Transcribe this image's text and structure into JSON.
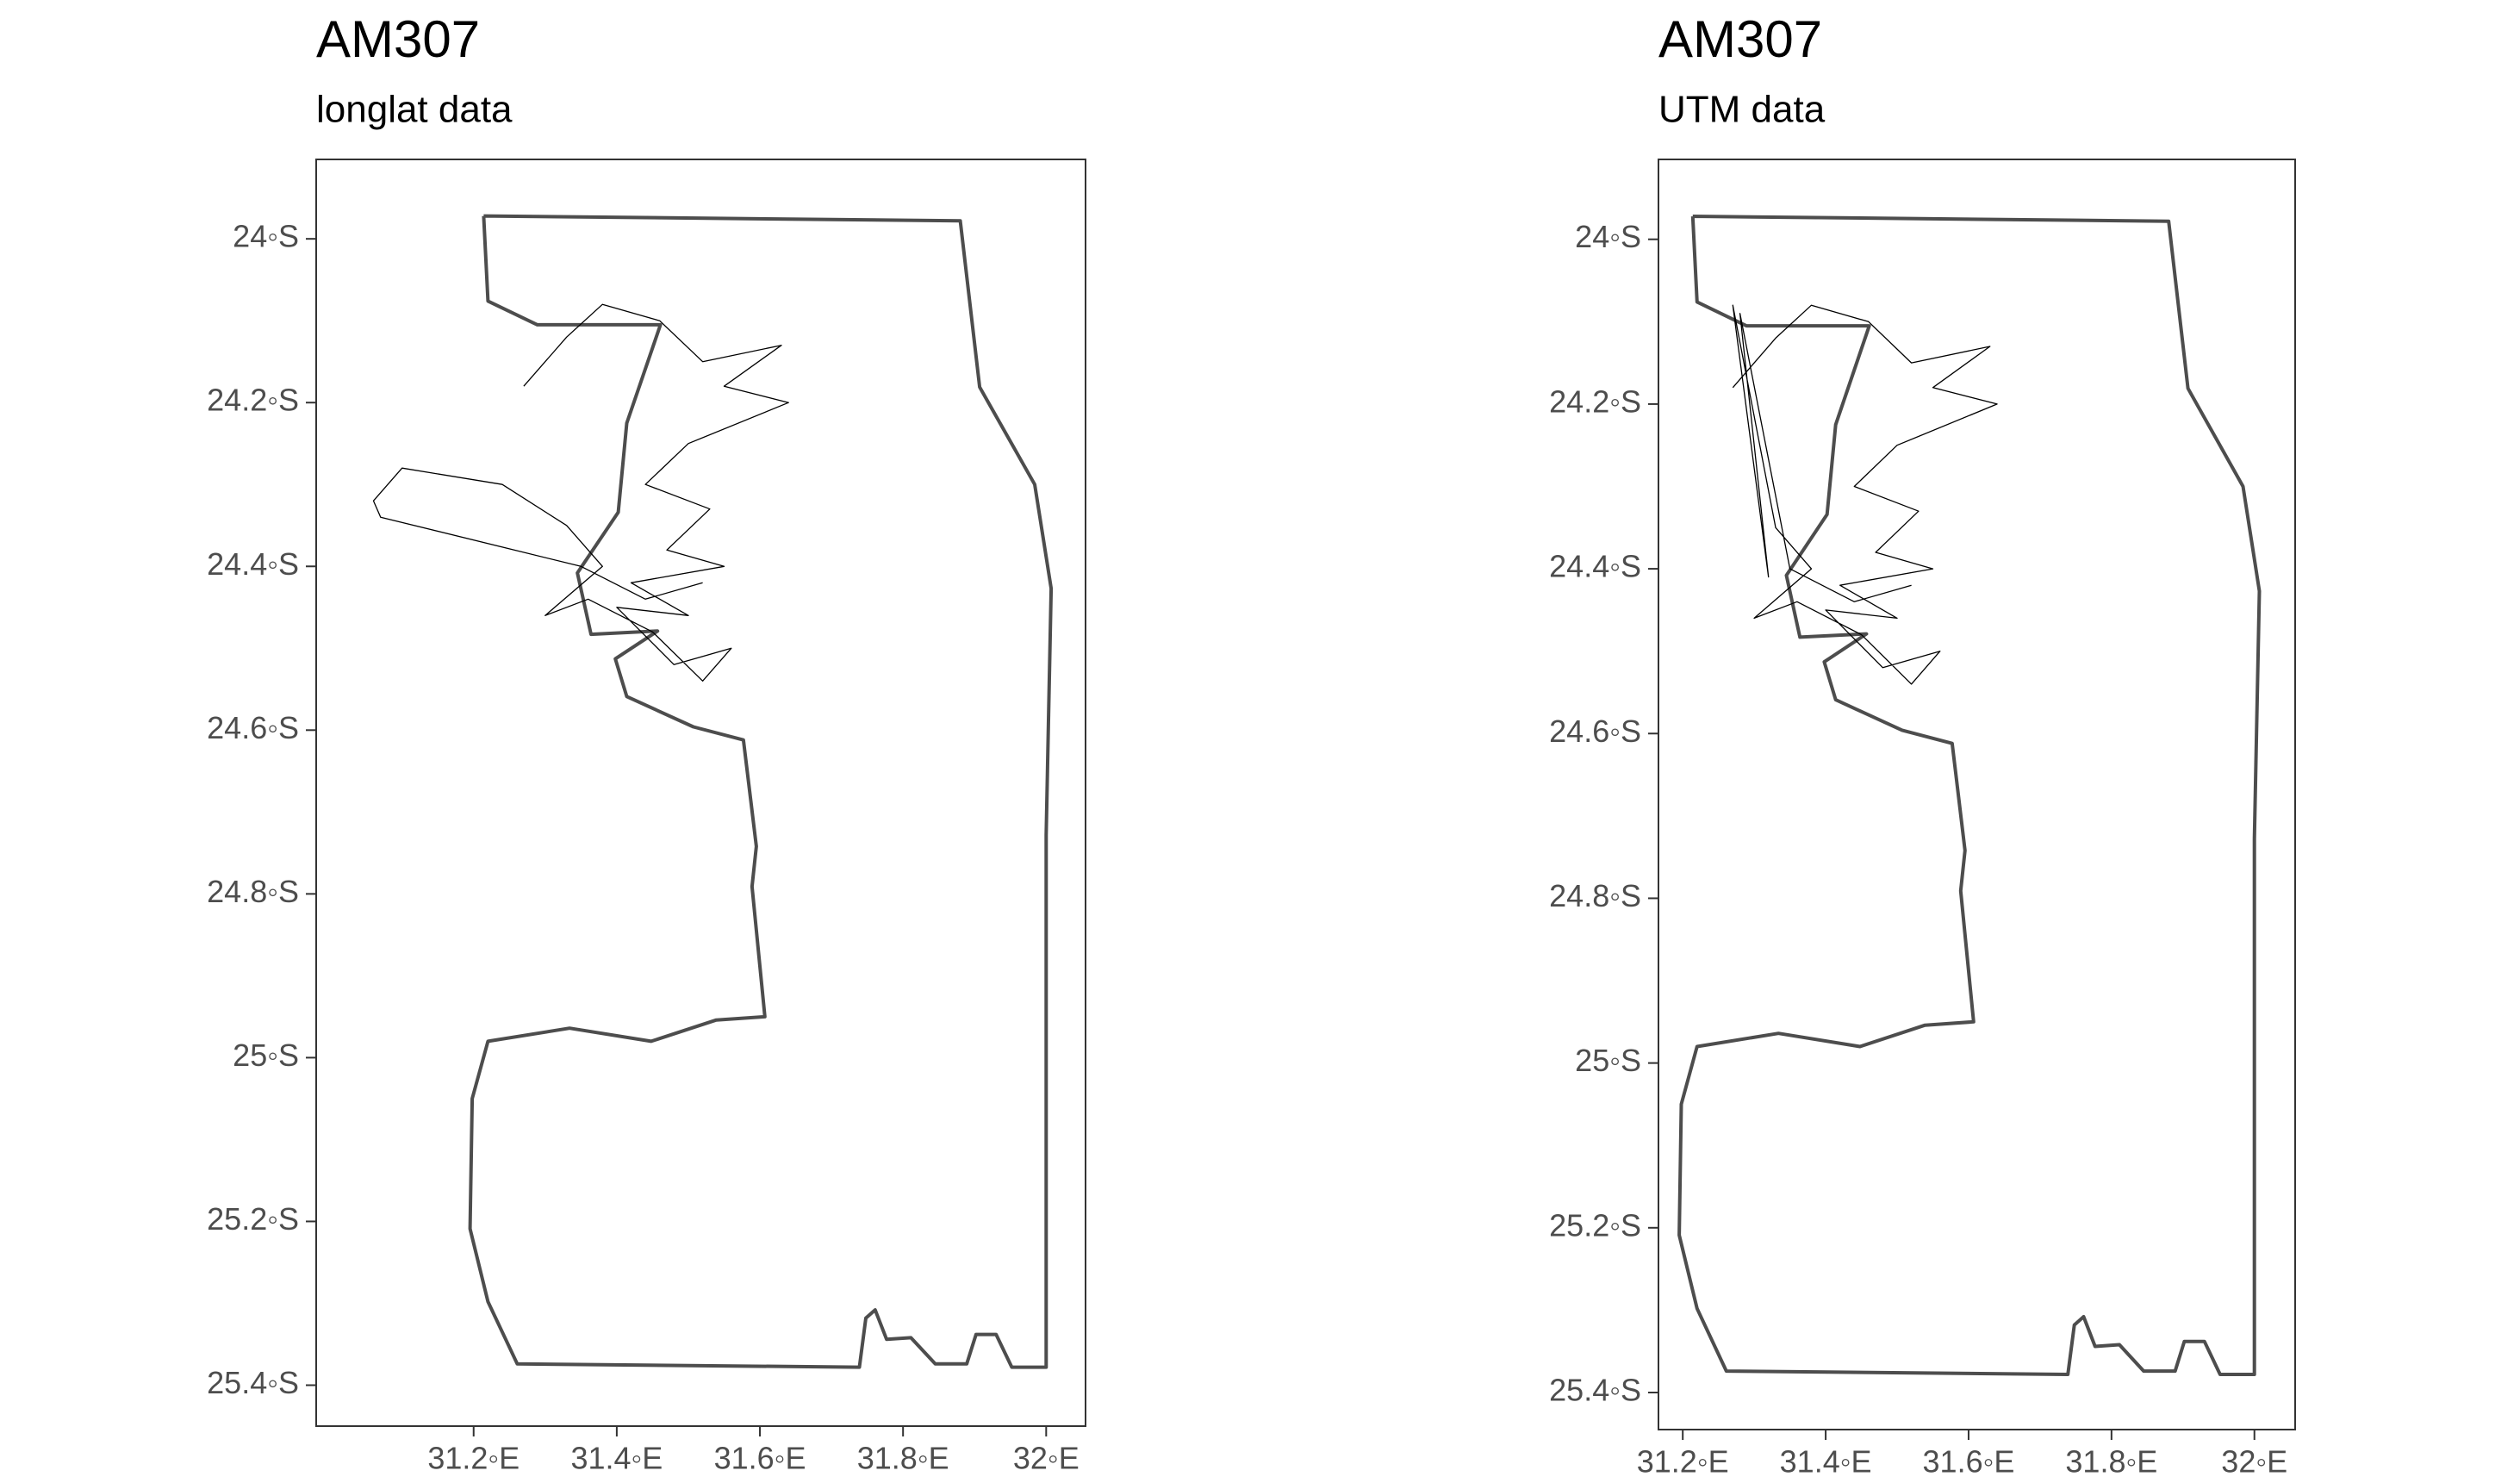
{
  "chart_data": [
    {
      "type": "line",
      "title": "AM307",
      "subtitle": "longlat data",
      "xlim": [
        30.98,
        32.055
      ],
      "ylim": [
        -25.45,
        -23.903
      ],
      "xticks": [
        {
          "value": 31.2,
          "label": "31.2◦E"
        },
        {
          "value": 31.4,
          "label": "31.4◦E"
        },
        {
          "value": 31.6,
          "label": "31.6◦E"
        },
        {
          "value": 31.8,
          "label": "31.8◦E"
        },
        {
          "value": 32.0,
          "label": "32◦E"
        }
      ],
      "yticks": [
        {
          "value": -24.0,
          "label": "24◦S"
        },
        {
          "value": -24.2,
          "label": "24.2◦S"
        },
        {
          "value": -24.4,
          "label": "24.4◦S"
        },
        {
          "value": -24.6,
          "label": "24.6◦S"
        },
        {
          "value": -24.8,
          "label": "24.8◦S"
        },
        {
          "value": -25.0,
          "label": "25◦S"
        },
        {
          "value": -25.2,
          "label": "25.2◦S"
        },
        {
          "value": -25.4,
          "label": "25.4◦S"
        }
      ],
      "series": [
        {
          "color": "#4d4d4d",
          "x": [
            31.214,
            31.88,
            31.907,
            31.984,
            32.007,
            32.0,
            32.0,
            31.952,
            31.93,
            31.902,
            31.889,
            31.845,
            31.811,
            31.777,
            31.761,
            31.748,
            31.739,
            31.261,
            31.22,
            31.195,
            31.198,
            31.22,
            31.334,
            31.448,
            31.539,
            31.607,
            31.589,
            31.595,
            31.577,
            31.507,
            31.414,
            31.398,
            31.457,
            31.364,
            31.345,
            31.402,
            31.414,
            31.461,
            31.289,
            31.22,
            31.214
          ],
          "values": [
            -23.972,
            -23.978,
            -24.181,
            -24.3,
            -24.427,
            -24.728,
            -25.378,
            -25.378,
            -25.338,
            -25.338,
            -25.374,
            -25.374,
            -25.342,
            -25.344,
            -25.308,
            -25.318,
            -25.378,
            -25.374,
            -25.298,
            -25.209,
            -25.05,
            -24.98,
            -24.964,
            -24.98,
            -24.954,
            -24.95,
            -24.791,
            -24.742,
            -24.612,
            -24.596,
            -24.559,
            -24.513,
            -24.479,
            -24.483,
            -24.408,
            -24.334,
            -24.225,
            -24.105,
            -24.105,
            -24.076,
            -23.972
          ]
        },
        {
          "color": "#000000",
          "x": [
            31.27,
            31.33,
            31.38,
            31.46,
            31.52,
            31.63,
            31.55,
            31.64,
            31.5,
            31.44,
            31.53,
            31.47,
            31.55,
            31.42,
            31.5,
            31.4,
            31.48,
            31.56,
            31.52,
            31.45,
            31.36,
            31.3,
            31.38,
            31.33,
            31.24,
            31.1,
            31.06,
            31.07,
            31.35,
            31.44,
            31.52
          ],
          "values": [
            -24.18,
            -24.12,
            -24.08,
            -24.1,
            -24.15,
            -24.13,
            -24.18,
            -24.2,
            -24.25,
            -24.3,
            -24.33,
            -24.38,
            -24.4,
            -24.42,
            -24.46,
            -24.45,
            -24.52,
            -24.5,
            -24.54,
            -24.48,
            -24.44,
            -24.46,
            -24.4,
            -24.35,
            -24.3,
            -24.28,
            -24.32,
            -24.34,
            -24.4,
            -24.44,
            -24.42
          ]
        }
      ]
    },
    {
      "type": "line",
      "title": "AM307",
      "subtitle": "UTM data",
      "xlim": [
        31.166,
        32.057
      ],
      "ylim": [
        -25.445,
        -23.903
      ],
      "xticks": [
        {
          "value": 31.2,
          "label": "31.2◦E"
        },
        {
          "value": 31.4,
          "label": "31.4◦E"
        },
        {
          "value": 31.6,
          "label": "31.6◦E"
        },
        {
          "value": 31.8,
          "label": "31.8◦E"
        },
        {
          "value": 32.0,
          "label": "32◦E"
        }
      ],
      "yticks": [
        {
          "value": -24.0,
          "label": "24◦S"
        },
        {
          "value": -24.2,
          "label": "24.2◦S"
        },
        {
          "value": -24.4,
          "label": "24.4◦S"
        },
        {
          "value": -24.6,
          "label": "24.6◦S"
        },
        {
          "value": -24.8,
          "label": "24.8◦S"
        },
        {
          "value": -25.0,
          "label": "25◦S"
        },
        {
          "value": -25.2,
          "label": "25.2◦S"
        },
        {
          "value": -25.4,
          "label": "25.4◦S"
        }
      ],
      "series": [
        {
          "color": "#4d4d4d",
          "x": [
            31.214,
            31.88,
            31.907,
            31.984,
            32.007,
            32.0,
            32.0,
            31.952,
            31.93,
            31.902,
            31.889,
            31.845,
            31.811,
            31.777,
            31.761,
            31.748,
            31.739,
            31.261,
            31.22,
            31.195,
            31.198,
            31.22,
            31.334,
            31.448,
            31.539,
            31.607,
            31.589,
            31.595,
            31.577,
            31.507,
            31.414,
            31.398,
            31.457,
            31.364,
            31.345,
            31.402,
            31.414,
            31.461,
            31.289,
            31.22,
            31.214
          ],
          "values": [
            -23.972,
            -23.978,
            -24.181,
            -24.3,
            -24.427,
            -24.728,
            -25.378,
            -25.378,
            -25.338,
            -25.338,
            -25.374,
            -25.374,
            -25.342,
            -25.344,
            -25.308,
            -25.318,
            -25.378,
            -25.374,
            -25.298,
            -25.209,
            -25.05,
            -24.98,
            -24.964,
            -24.98,
            -24.954,
            -24.95,
            -24.791,
            -24.742,
            -24.612,
            -24.596,
            -24.559,
            -24.513,
            -24.479,
            -24.483,
            -24.408,
            -24.334,
            -24.225,
            -24.105,
            -24.105,
            -24.076,
            -23.972
          ]
        },
        {
          "color": "#000000",
          "x": [
            31.27,
            31.33,
            31.38,
            31.46,
            31.52,
            31.63,
            31.55,
            31.64,
            31.5,
            31.44,
            31.53,
            31.47,
            31.55,
            31.42,
            31.5,
            31.4,
            31.48,
            31.56,
            31.52,
            31.45,
            31.36,
            31.3,
            31.38,
            31.33,
            31.27,
            31.32,
            31.28,
            31.35,
            31.44,
            31.52
          ],
          "values": [
            -24.18,
            -24.12,
            -24.08,
            -24.1,
            -24.15,
            -24.13,
            -24.18,
            -24.2,
            -24.25,
            -24.3,
            -24.33,
            -24.38,
            -24.4,
            -24.42,
            -24.46,
            -24.45,
            -24.52,
            -24.5,
            -24.54,
            -24.48,
            -24.44,
            -24.46,
            -24.4,
            -24.35,
            -24.08,
            -24.41,
            -24.09,
            -24.4,
            -24.44,
            -24.42
          ]
        }
      ]
    }
  ]
}
